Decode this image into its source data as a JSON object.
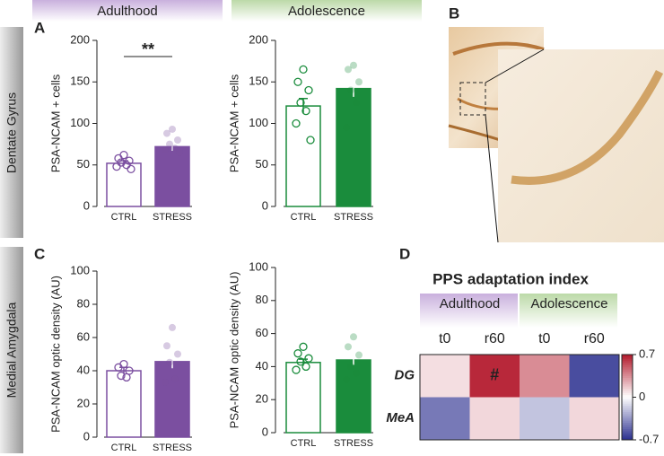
{
  "headers": [
    "Adulthood",
    "Adolescence"
  ],
  "row_labels": [
    "Dentate Gyrus",
    "Medial Amygdala"
  ],
  "panel_labels": [
    "A",
    "B",
    "C",
    "D"
  ],
  "chart_data": [
    {
      "type": "bar",
      "ylabel": "PSA-NCAM + cells",
      "categories": [
        "CTRL",
        "STRESS"
      ],
      "values": [
        52,
        72
      ],
      "errors": [
        3,
        5
      ],
      "filled": [
        false,
        true
      ],
      "color": "#7b4fa0",
      "points": [
        [
          62,
          58,
          55,
          53,
          50,
          48,
          45
        ],
        [
          93,
          88,
          80,
          75,
          70,
          68,
          65
        ]
      ],
      "annotation": "**",
      "ylim": [
        0,
        200
      ],
      "yticks": [
        0,
        50,
        100,
        150,
        200
      ]
    },
    {
      "type": "bar",
      "ylabel": "PSA-NCAM + cells",
      "categories": [
        "CTRL",
        "STRESS"
      ],
      "values": [
        121,
        142
      ],
      "errors": [
        9,
        10
      ],
      "filled": [
        false,
        true
      ],
      "color": "#1a8c3c",
      "points": [
        [
          165,
          150,
          140,
          125,
          115,
          100,
          80
        ],
        [
          170,
          165,
          150,
          140,
          125,
          95
        ]
      ],
      "ylim": [
        0,
        200
      ],
      "yticks": [
        0,
        50,
        100,
        150,
        200
      ]
    },
    {
      "type": "bar",
      "ylabel": "PSA-NCAM optic density (AU)",
      "categories": [
        "CTRL",
        "STRESS"
      ],
      "values": [
        40,
        45.5
      ],
      "errors": [
        2,
        4
      ],
      "filled": [
        false,
        true
      ],
      "color": "#7b4fa0",
      "points": [
        [
          44,
          42,
          40,
          37,
          36
        ],
        [
          66,
          55,
          50,
          45,
          35,
          33
        ]
      ],
      "ylim": [
        0,
        100
      ],
      "yticks": [
        0,
        20,
        40,
        60,
        80,
        100
      ]
    },
    {
      "type": "bar",
      "ylabel": "PSA-NCAM optic density (AU)",
      "categories": [
        "CTRL",
        "STRESS"
      ],
      "values": [
        42.5,
        44
      ],
      "errors": [
        2,
        3
      ],
      "filled": [
        false,
        true
      ],
      "color": "#1a8c3c",
      "points": [
        [
          52,
          48,
          45,
          43,
          40,
          38
        ],
        [
          58,
          52,
          47,
          40,
          36,
          32
        ]
      ],
      "ylim": [
        0,
        100
      ],
      "yticks": [
        0,
        20,
        40,
        60,
        80,
        100
      ]
    },
    {
      "type": "heatmap",
      "title": "PPS adaptation index",
      "groups": [
        "Adulthood",
        "Adolescence"
      ],
      "columns": [
        "t0",
        "r60",
        "t0",
        "r60"
      ],
      "rows": [
        "DG",
        "MeA"
      ],
      "values": [
        [
          0.1,
          0.65,
          0.35,
          -0.6
        ],
        [
          -0.45,
          0.12,
          -0.2,
          0.12
        ]
      ],
      "cell_annotations": [
        [
          null,
          "#",
          null,
          null
        ],
        [
          null,
          null,
          null,
          null
        ]
      ],
      "zlim": [
        -0.7,
        0.7
      ],
      "zticks": [
        0.7,
        0,
        -0.7
      ]
    }
  ]
}
